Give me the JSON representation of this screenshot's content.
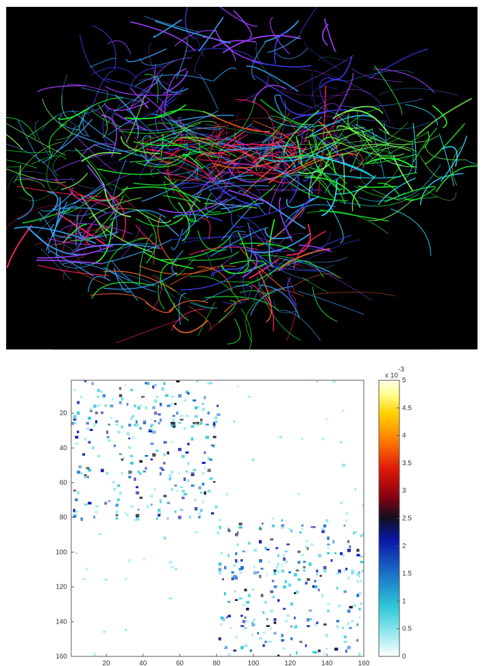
{
  "figure": {
    "tractography": {
      "description_icon": "brain-tractography-icon",
      "background": "#000000",
      "fiber_colors": [
        "#22ff33",
        "#3aa8ff",
        "#4040ff",
        "#a040ff",
        "#ff2060",
        "#ff6a2a",
        "#c02040",
        "#7dff5a",
        "#28e0ff"
      ]
    },
    "matrix": {
      "chart_data": {
        "type": "heatmap",
        "title": "",
        "xlabel": "",
        "ylabel": "",
        "x_ticks": [
          "20",
          "40",
          "60",
          "80",
          "100",
          "120",
          "140",
          "160"
        ],
        "y_ticks": [
          "20",
          "40",
          "60",
          "80",
          "100",
          "120",
          "140",
          "160"
        ],
        "xlim": [
          1,
          160
        ],
        "ylim": [
          1,
          160
        ],
        "block_structure": [
          {
            "rows": [
              1,
              80
            ],
            "cols": [
              1,
              80
            ],
            "density": "high"
          },
          {
            "rows": [
              81,
              160
            ],
            "cols": [
              81,
              160
            ],
            "density": "high"
          },
          {
            "rows": [
              1,
              80
            ],
            "cols": [
              81,
              160
            ],
            "density": "low"
          },
          {
            "rows": [
              81,
              160
            ],
            "cols": [
              1,
              80
            ],
            "density": "low"
          }
        ],
        "colorbar": {
          "ticks": [
            "0",
            "0.5",
            "1",
            "1.5",
            "2",
            "2.5",
            "3",
            "3.5",
            "4",
            "4.5",
            "5"
          ],
          "range": [
            0,
            5
          ],
          "multiplier_base": "x 10",
          "multiplier_exp": "-3",
          "colors": [
            "#ffffff",
            "#8fe6ee",
            "#2ec8d8",
            "#1a70c8",
            "#0a18a8",
            "#101020",
            "#8a0010",
            "#e01808",
            "#ff7a00",
            "#ffd200",
            "#ffff90",
            "#ffffe6"
          ]
        }
      }
    }
  }
}
